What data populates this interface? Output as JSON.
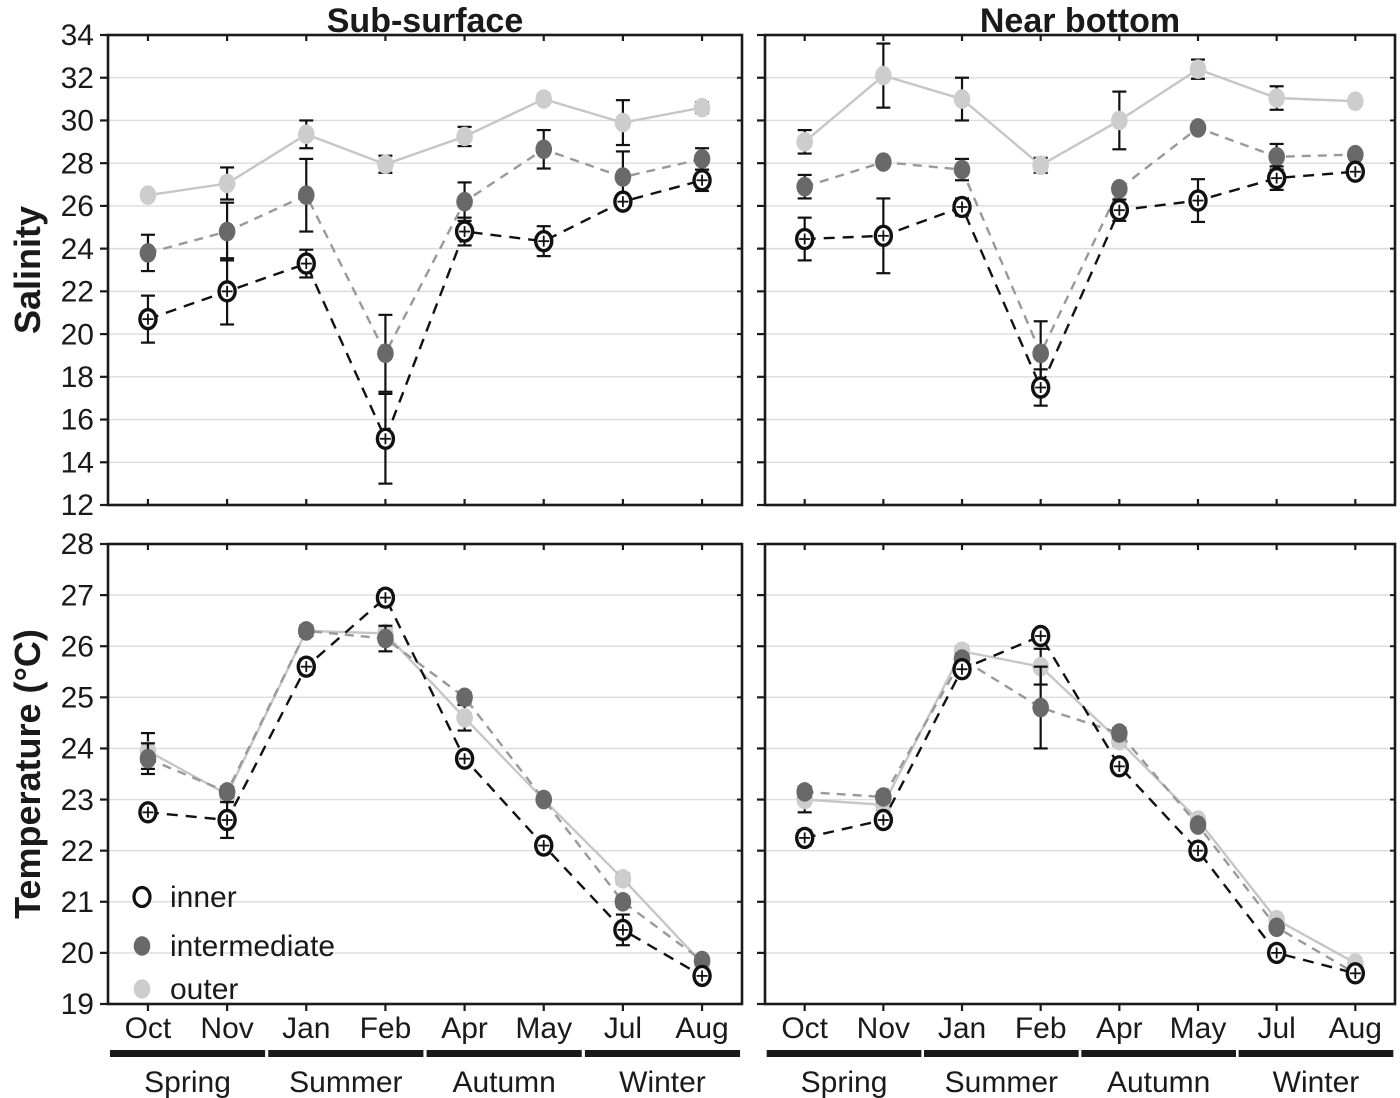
{
  "figure": {
    "column_titles": [
      "Sub-surface",
      "Near bottom"
    ],
    "row_ylabels": [
      "Salinity",
      "Temperature (°C)"
    ]
  },
  "months": [
    "Oct",
    "Nov",
    "Jan",
    "Feb",
    "Apr",
    "May",
    "Jul",
    "Aug"
  ],
  "season_groups": [
    {
      "label": "Spring",
      "month_span": [
        "Oct",
        "Nov"
      ]
    },
    {
      "label": "Summer",
      "month_span": [
        "Jan",
        "Feb"
      ]
    },
    {
      "label": "Autumn",
      "month_span": [
        "Apr",
        "May"
      ]
    },
    {
      "label": "Winter",
      "month_span": [
        "Jul",
        "Aug"
      ]
    }
  ],
  "legend": {
    "items": [
      {
        "name": "inner",
        "label": "inner"
      },
      {
        "name": "intermediate",
        "label": "intermediate"
      },
      {
        "name": "outer",
        "label": "outer"
      }
    ]
  },
  "colors": {
    "inner_stroke": "#111111",
    "inner_fill": "#ffffff",
    "inner_line": "#111111",
    "intermediate_fill": "#696969",
    "intermediate_line": "#999999",
    "outer_fill": "#cdcdcd",
    "outer_line": "#c6c6c6",
    "grid": "#dcdcdc",
    "error": "#111111",
    "border": "#1a1a1a",
    "text": "#1a1a1a"
  },
  "chart_data": [
    {
      "id": "salinity-sub-surface",
      "type": "line",
      "title": "Sub-surface",
      "ylabel": "Salinity",
      "ylim": [
        12,
        34
      ],
      "ytick_step": 2,
      "x_categories": [
        "Oct",
        "Nov",
        "Jan",
        "Feb",
        "Apr",
        "May",
        "Jul",
        "Aug"
      ],
      "series": [
        {
          "name": "outer",
          "values": [
            26.5,
            27.05,
            29.35,
            27.95,
            29.25,
            31.0,
            29.9,
            30.6
          ],
          "errors": [
            0.15,
            0.75,
            0.65,
            0.4,
            0.45,
            0.2,
            1.05,
            0.25
          ]
        },
        {
          "name": "intermediate",
          "values": [
            23.8,
            24.8,
            26.5,
            19.1,
            26.2,
            28.65,
            27.35,
            28.2
          ],
          "errors": [
            0.85,
            1.35,
            1.7,
            1.8,
            0.9,
            0.9,
            1.2,
            0.5
          ]
        },
        {
          "name": "inner",
          "values": [
            20.7,
            22.0,
            23.3,
            15.1,
            24.8,
            24.35,
            26.2,
            27.2
          ],
          "errors": [
            1.1,
            1.55,
            0.65,
            2.1,
            0.65,
            0.7,
            0.3,
            0.5
          ]
        }
      ]
    },
    {
      "id": "salinity-near-bottom",
      "type": "line",
      "title": "Near bottom",
      "ylabel": "Salinity",
      "ylim": [
        12,
        34
      ],
      "ytick_step": 2,
      "x_categories": [
        "Oct",
        "Nov",
        "Jan",
        "Feb",
        "Apr",
        "May",
        "Jul",
        "Aug"
      ],
      "series": [
        {
          "name": "outer",
          "values": [
            29.0,
            32.1,
            31.0,
            27.9,
            30.0,
            32.4,
            31.05,
            30.9
          ],
          "errors": [
            0.55,
            1.5,
            1.0,
            0.35,
            1.35,
            0.45,
            0.55,
            0.15
          ]
        },
        {
          "name": "intermediate",
          "values": [
            26.9,
            28.05,
            27.7,
            19.1,
            26.8,
            29.65,
            28.3,
            28.4
          ],
          "errors": [
            0.55,
            0.2,
            0.5,
            1.5,
            0.2,
            0.15,
            0.6,
            0.2
          ]
        },
        {
          "name": "inner",
          "values": [
            24.45,
            24.6,
            25.95,
            17.5,
            25.8,
            26.25,
            27.3,
            27.6
          ],
          "errors": [
            1.0,
            1.75,
            0.4,
            0.85,
            0.5,
            1.0,
            0.55,
            0.2
          ]
        }
      ]
    },
    {
      "id": "temperature-sub-surface",
      "type": "line",
      "title": "Sub-surface",
      "ylabel": "Temperature (°C)",
      "ylim": [
        19,
        28
      ],
      "ytick_step": 1,
      "x_categories": [
        "Oct",
        "Nov",
        "Jan",
        "Feb",
        "Apr",
        "May",
        "Jul",
        "Aug"
      ],
      "series": [
        {
          "name": "outer",
          "values": [
            23.95,
            23.1,
            26.3,
            26.25,
            24.6,
            23.0,
            21.45,
            19.8
          ],
          "errors": [
            0.35,
            0.1,
            0.1,
            0.1,
            0.25,
            0.05,
            0.1,
            0.05
          ]
        },
        {
          "name": "intermediate",
          "values": [
            23.8,
            23.15,
            26.3,
            26.15,
            25.0,
            23.0,
            21.0,
            19.85
          ],
          "errors": [
            0.3,
            0.1,
            0.1,
            0.25,
            0.1,
            0.05,
            0.1,
            0.05
          ]
        },
        {
          "name": "inner",
          "values": [
            22.75,
            22.6,
            25.6,
            26.95,
            23.8,
            22.1,
            20.45,
            19.55
          ],
          "errors": [
            0.1,
            0.35,
            0.15,
            0.15,
            0.1,
            0.15,
            0.3,
            0.1
          ]
        }
      ]
    },
    {
      "id": "temperature-near-bottom",
      "type": "line",
      "title": "Near bottom",
      "ylabel": "Temperature (°C)",
      "ylim": [
        19,
        28
      ],
      "ytick_step": 1,
      "x_categories": [
        "Oct",
        "Nov",
        "Jan",
        "Feb",
        "Apr",
        "May",
        "Jul",
        "Aug"
      ],
      "series": [
        {
          "name": "outer",
          "values": [
            23.0,
            22.9,
            25.9,
            25.6,
            24.15,
            22.6,
            20.65,
            19.8
          ],
          "errors": [
            0.25,
            0.1,
            0.1,
            0.35,
            0.1,
            0.05,
            0.05,
            0.05
          ]
        },
        {
          "name": "intermediate",
          "values": [
            23.15,
            23.05,
            25.75,
            24.8,
            24.3,
            22.5,
            20.5,
            19.6
          ],
          "errors": [
            0.1,
            0.1,
            0.1,
            0.8,
            0.1,
            0.05,
            0.05,
            0.05
          ]
        },
        {
          "name": "inner",
          "values": [
            22.25,
            22.6,
            25.55,
            26.2,
            23.65,
            22.0,
            20.0,
            19.6
          ],
          "errors": [
            0.15,
            0.1,
            0.1,
            0.1,
            0.1,
            0.1,
            0.05,
            0.05
          ]
        }
      ]
    }
  ]
}
